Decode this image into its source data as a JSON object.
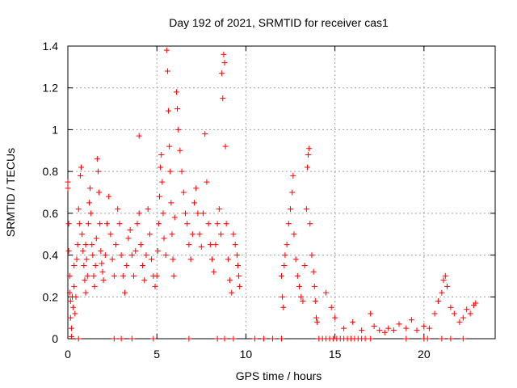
{
  "chart_data": {
    "type": "scatter",
    "title": "Day 192 of 2021, SRMTID for receiver cas1",
    "xlabel": "GPS time / hours",
    "ylabel": "SRMTID / TECUs",
    "xlim": [
      0,
      24
    ],
    "ylim": [
      0,
      1.4
    ],
    "grid": true,
    "marker": "+",
    "color": "#ff0000",
    "x_ticks": [
      0,
      5,
      10,
      15,
      20
    ],
    "x_tick_labels": [
      "0",
      "5",
      "10",
      "15",
      "20"
    ],
    "y_ticks": [
      0,
      0.2,
      0.4,
      0.6,
      0.8,
      1.0,
      1.2,
      1.4
    ],
    "y_tick_labels": [
      "0",
      "0.2",
      "0.4",
      "0.6",
      "0.8",
      "1",
      "1.2",
      "1.4"
    ],
    "series": [
      {
        "name": "cas1",
        "points": [
          [
            0.0,
            0.72
          ],
          [
            0.0,
            0.75
          ],
          [
            0.05,
            0.55
          ],
          [
            0.05,
            0.42
          ],
          [
            0.1,
            0.3
          ],
          [
            0.1,
            0.22
          ],
          [
            0.15,
            0.18
          ],
          [
            0.15,
            0.1
          ],
          [
            0.2,
            0.05
          ],
          [
            0.2,
            0.01
          ],
          [
            0.25,
            0.2
          ],
          [
            0.3,
            0.15
          ],
          [
            0.35,
            0.35
          ],
          [
            0.35,
            0.25
          ],
          [
            0.4,
            0.12
          ],
          [
            0.45,
            0.2
          ],
          [
            0.5,
            0.38
          ],
          [
            0.55,
            0.45
          ],
          [
            0.6,
            0.62
          ],
          [
            0.65,
            0.55
          ],
          [
            0.7,
            0.78
          ],
          [
            0.75,
            0.82
          ],
          [
            0.8,
            0.5
          ],
          [
            0.85,
            0.42
          ],
          [
            0.9,
            0.35
          ],
          [
            0.95,
            0.28
          ],
          [
            1.0,
            0.22
          ],
          [
            1.0,
            0.45
          ],
          [
            1.05,
            0.38
          ],
          [
            1.1,
            0.3
          ],
          [
            1.15,
            0.55
          ],
          [
            1.2,
            0.65
          ],
          [
            1.25,
            0.72
          ],
          [
            1.3,
            0.6
          ],
          [
            1.35,
            0.45
          ],
          [
            1.4,
            0.4
          ],
          [
            1.45,
            0.3
          ],
          [
            1.5,
            0.25
          ],
          [
            1.55,
            0.35
          ],
          [
            1.6,
            0.48
          ],
          [
            1.65,
            0.86
          ],
          [
            1.7,
            0.8
          ],
          [
            1.75,
            0.7
          ],
          [
            1.8,
            0.55
          ],
          [
            1.85,
            0.42
          ],
          [
            1.9,
            0.36
          ],
          [
            1.95,
            0.32
          ],
          [
            2.0,
            0.28
          ],
          [
            2.1,
            0.4
          ],
          [
            2.2,
            0.55
          ],
          [
            2.3,
            0.68
          ],
          [
            2.4,
            0.5
          ],
          [
            2.5,
            0.38
          ],
          [
            2.6,
            0.3
          ],
          [
            2.7,
            0.45
          ],
          [
            2.8,
            0.62
          ],
          [
            2.9,
            0.55
          ],
          [
            3.0,
            0.4
          ],
          [
            3.1,
            0.3
          ],
          [
            3.2,
            0.22
          ],
          [
            3.3,
            0.35
          ],
          [
            3.4,
            0.48
          ],
          [
            3.5,
            0.52
          ],
          [
            3.6,
            0.4
          ],
          [
            3.7,
            0.3
          ],
          [
            3.8,
            0.42
          ],
          [
            3.9,
            0.55
          ],
          [
            4.0,
            0.97
          ],
          [
            4.0,
            0.6
          ],
          [
            4.1,
            0.45
          ],
          [
            4.2,
            0.35
          ],
          [
            4.3,
            0.28
          ],
          [
            4.4,
            0.4
          ],
          [
            4.5,
            0.62
          ],
          [
            4.6,
            0.5
          ],
          [
            4.7,
            0.38
          ],
          [
            4.8,
            0.3
          ],
          [
            4.9,
            0.25
          ],
          [
            5.0,
            0.3
          ],
          [
            5.05,
            0.42
          ],
          [
            5.1,
            0.55
          ],
          [
            5.15,
            0.68
          ],
          [
            5.2,
            0.82
          ],
          [
            5.25,
            0.88
          ],
          [
            5.3,
            0.75
          ],
          [
            5.35,
            0.6
          ],
          [
            5.4,
            0.48
          ],
          [
            5.5,
            0.4
          ],
          [
            5.55,
            1.38
          ],
          [
            5.6,
            1.28
          ],
          [
            5.65,
            1.09
          ],
          [
            5.7,
            0.92
          ],
          [
            5.75,
            0.8
          ],
          [
            5.8,
            0.65
          ],
          [
            5.85,
            0.5
          ],
          [
            5.9,
            0.38
          ],
          [
            5.95,
            0.3
          ],
          [
            6.0,
            0.58
          ],
          [
            6.1,
            1.18
          ],
          [
            6.15,
            1.1
          ],
          [
            6.2,
            1.0
          ],
          [
            6.3,
            0.9
          ],
          [
            6.4,
            0.8
          ],
          [
            6.5,
            0.7
          ],
          [
            6.6,
            0.6
          ],
          [
            6.7,
            0.55
          ],
          [
            6.8,
            0.45
          ],
          [
            6.9,
            0.38
          ],
          [
            7.0,
            0.5
          ],
          [
            7.1,
            0.65
          ],
          [
            7.2,
            0.72
          ],
          [
            7.3,
            0.6
          ],
          [
            7.4,
            0.5
          ],
          [
            7.5,
            0.44
          ],
          [
            7.6,
            0.6
          ],
          [
            7.7,
            0.98
          ],
          [
            7.8,
            0.75
          ],
          [
            7.9,
            0.55
          ],
          [
            8.0,
            0.45
          ],
          [
            8.1,
            0.38
          ],
          [
            8.2,
            0.32
          ],
          [
            8.3,
            0.45
          ],
          [
            8.4,
            0.55
          ],
          [
            8.5,
            0.62
          ],
          [
            8.6,
            0.5
          ],
          [
            8.65,
            1.27
          ],
          [
            8.7,
            1.15
          ],
          [
            8.75,
            1.36
          ],
          [
            8.8,
            1.32
          ],
          [
            8.85,
            0.92
          ],
          [
            8.9,
            0.55
          ],
          [
            9.0,
            0.38
          ],
          [
            9.1,
            0.28
          ],
          [
            9.2,
            0.22
          ],
          [
            9.3,
            0.5
          ],
          [
            9.4,
            0.45
          ],
          [
            9.5,
            0.4
          ],
          [
            9.55,
            0.35
          ],
          [
            9.6,
            0.3
          ],
          [
            9.65,
            0.25
          ],
          [
            12.0,
            0.3
          ],
          [
            12.05,
            0.2
          ],
          [
            12.1,
            0.15
          ],
          [
            12.15,
            0.35
          ],
          [
            12.2,
            0.4
          ],
          [
            12.3,
            0.45
          ],
          [
            12.4,
            0.55
          ],
          [
            12.5,
            0.62
          ],
          [
            12.6,
            0.7
          ],
          [
            12.65,
            0.78
          ],
          [
            12.7,
            0.5
          ],
          [
            12.8,
            0.38
          ],
          [
            12.9,
            0.3
          ],
          [
            13.0,
            0.25
          ],
          [
            13.1,
            0.2
          ],
          [
            13.2,
            0.18
          ],
          [
            13.3,
            0.35
          ],
          [
            13.4,
            0.62
          ],
          [
            13.45,
            0.82
          ],
          [
            13.5,
            0.88
          ],
          [
            13.55,
            0.91
          ],
          [
            13.6,
            0.55
          ],
          [
            13.7,
            0.4
          ],
          [
            13.8,
            0.32
          ],
          [
            13.85,
            0.25
          ],
          [
            13.9,
            0.18
          ],
          [
            13.95,
            0.1
          ],
          [
            14.0,
            0.08
          ],
          [
            14.5,
            0.22
          ],
          [
            14.8,
            0.15
          ],
          [
            15.0,
            0.1
          ],
          [
            15.5,
            0.05
          ],
          [
            16.0,
            0.08
          ],
          [
            16.5,
            0.04
          ],
          [
            17.0,
            0.12
          ],
          [
            17.2,
            0.06
          ],
          [
            17.5,
            0.04
          ],
          [
            17.8,
            0.03
          ],
          [
            18.0,
            0.05
          ],
          [
            18.3,
            0.04
          ],
          [
            18.6,
            0.07
          ],
          [
            19.0,
            0.05
          ],
          [
            19.3,
            0.09
          ],
          [
            19.6,
            0.04
          ],
          [
            20.0,
            0.06
          ],
          [
            20.3,
            0.05
          ],
          [
            20.6,
            0.12
          ],
          [
            20.8,
            0.18
          ],
          [
            21.0,
            0.22
          ],
          [
            21.1,
            0.28
          ],
          [
            21.2,
            0.3
          ],
          [
            21.3,
            0.25
          ],
          [
            21.5,
            0.15
          ],
          [
            21.7,
            0.12
          ],
          [
            22.0,
            0.08
          ],
          [
            22.2,
            0.1
          ],
          [
            22.4,
            0.14
          ],
          [
            22.6,
            0.12
          ],
          [
            22.8,
            0.16
          ],
          [
            22.9,
            0.17
          ],
          [
            0.6,
            0.0
          ],
          [
            2.6,
            0.0
          ],
          [
            3.0,
            0.0
          ],
          [
            3.6,
            0.0
          ],
          [
            4.8,
            0.0
          ],
          [
            6.8,
            0.0
          ],
          [
            8.4,
            0.0
          ],
          [
            8.8,
            0.0
          ],
          [
            9.3,
            0.0
          ],
          [
            10.5,
            0.0
          ],
          [
            11.0,
            0.0
          ],
          [
            11.5,
            0.0
          ],
          [
            12.0,
            0.0
          ],
          [
            14.1,
            0.0
          ],
          [
            14.3,
            0.0
          ],
          [
            14.5,
            0.0
          ],
          [
            14.7,
            0.0
          ],
          [
            14.9,
            0.0
          ],
          [
            15.1,
            0.0
          ],
          [
            15.3,
            0.0
          ],
          [
            15.5,
            0.0
          ],
          [
            15.7,
            0.0
          ],
          [
            15.9,
            0.0
          ],
          [
            16.1,
            0.0
          ],
          [
            16.3,
            0.0
          ],
          [
            16.5,
            0.0
          ],
          [
            16.7,
            0.0
          ],
          [
            17.0,
            0.0
          ],
          [
            19.0,
            0.0
          ],
          [
            20.0,
            0.0
          ],
          [
            20.2,
            0.0
          ],
          [
            21.0,
            0.0
          ],
          [
            21.5,
            0.0
          ],
          [
            22.2,
            0.0
          ]
        ]
      }
    ]
  }
}
